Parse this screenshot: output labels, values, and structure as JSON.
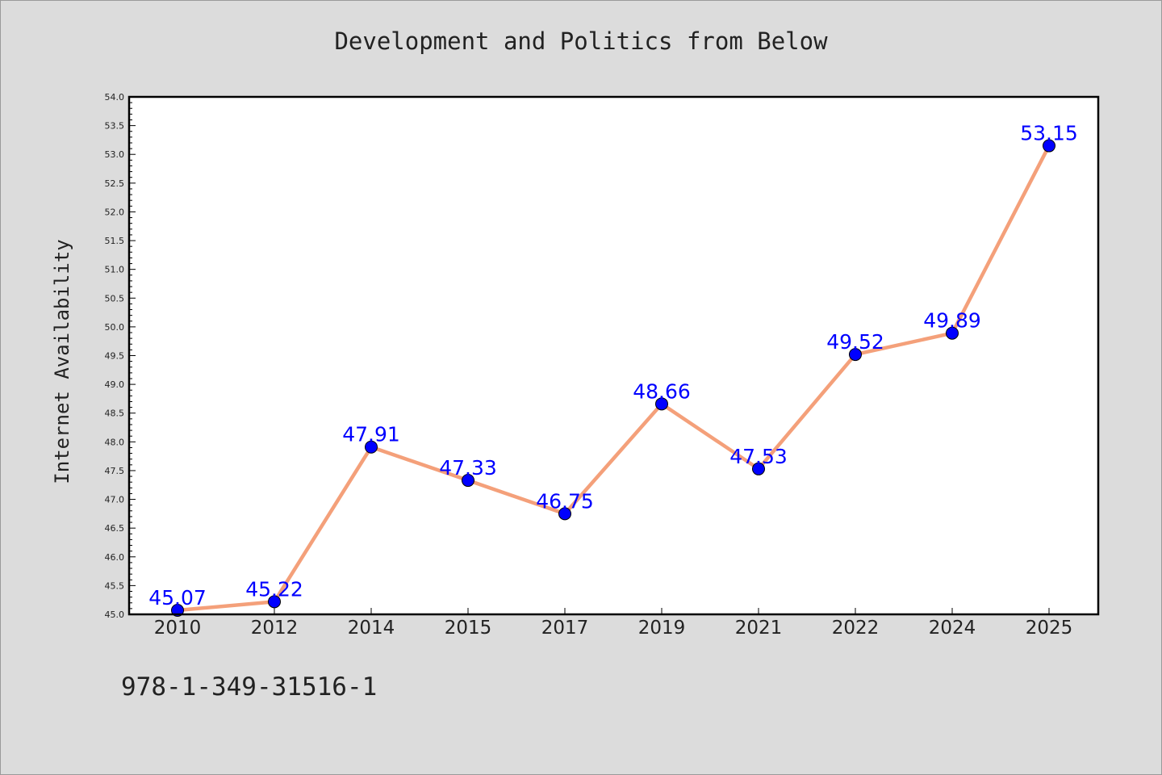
{
  "chart_data": {
    "type": "line",
    "title": "Development and Politics from Below",
    "xlabel": "",
    "ylabel": "Internet Availability",
    "categories": [
      "2010",
      "2012",
      "2014",
      "2015",
      "2017",
      "2019",
      "2021",
      "2022",
      "2024",
      "2025"
    ],
    "series": [
      {
        "values": [
          45.07,
          45.22,
          47.91,
          47.33,
          46.75,
          48.66,
          47.53,
          49.52,
          49.89,
          53.15
        ],
        "labels": [
          "45.07",
          "45.22",
          "47.91",
          "47.33",
          "46.75",
          "48.66",
          "47.53",
          "49.52",
          "49.89",
          "53.15"
        ],
        "line_color": "#f4a07a",
        "marker_color": "#0000ff"
      }
    ],
    "ylim": [
      45.0,
      54.0
    ],
    "y_ticks": [
      "45.0",
      "45.5",
      "46.0",
      "46.5",
      "47.0",
      "47.5",
      "48.0",
      "48.5",
      "49.0",
      "49.5",
      "50.0",
      "50.5",
      "51.0",
      "51.5",
      "52.0",
      "52.5",
      "53.0",
      "53.5",
      "54.0"
    ],
    "grid": false,
    "background": "#dcdcdc",
    "plot_background": "#ffffff"
  },
  "footer": {
    "isbn": "978-1-349-31516-1"
  }
}
